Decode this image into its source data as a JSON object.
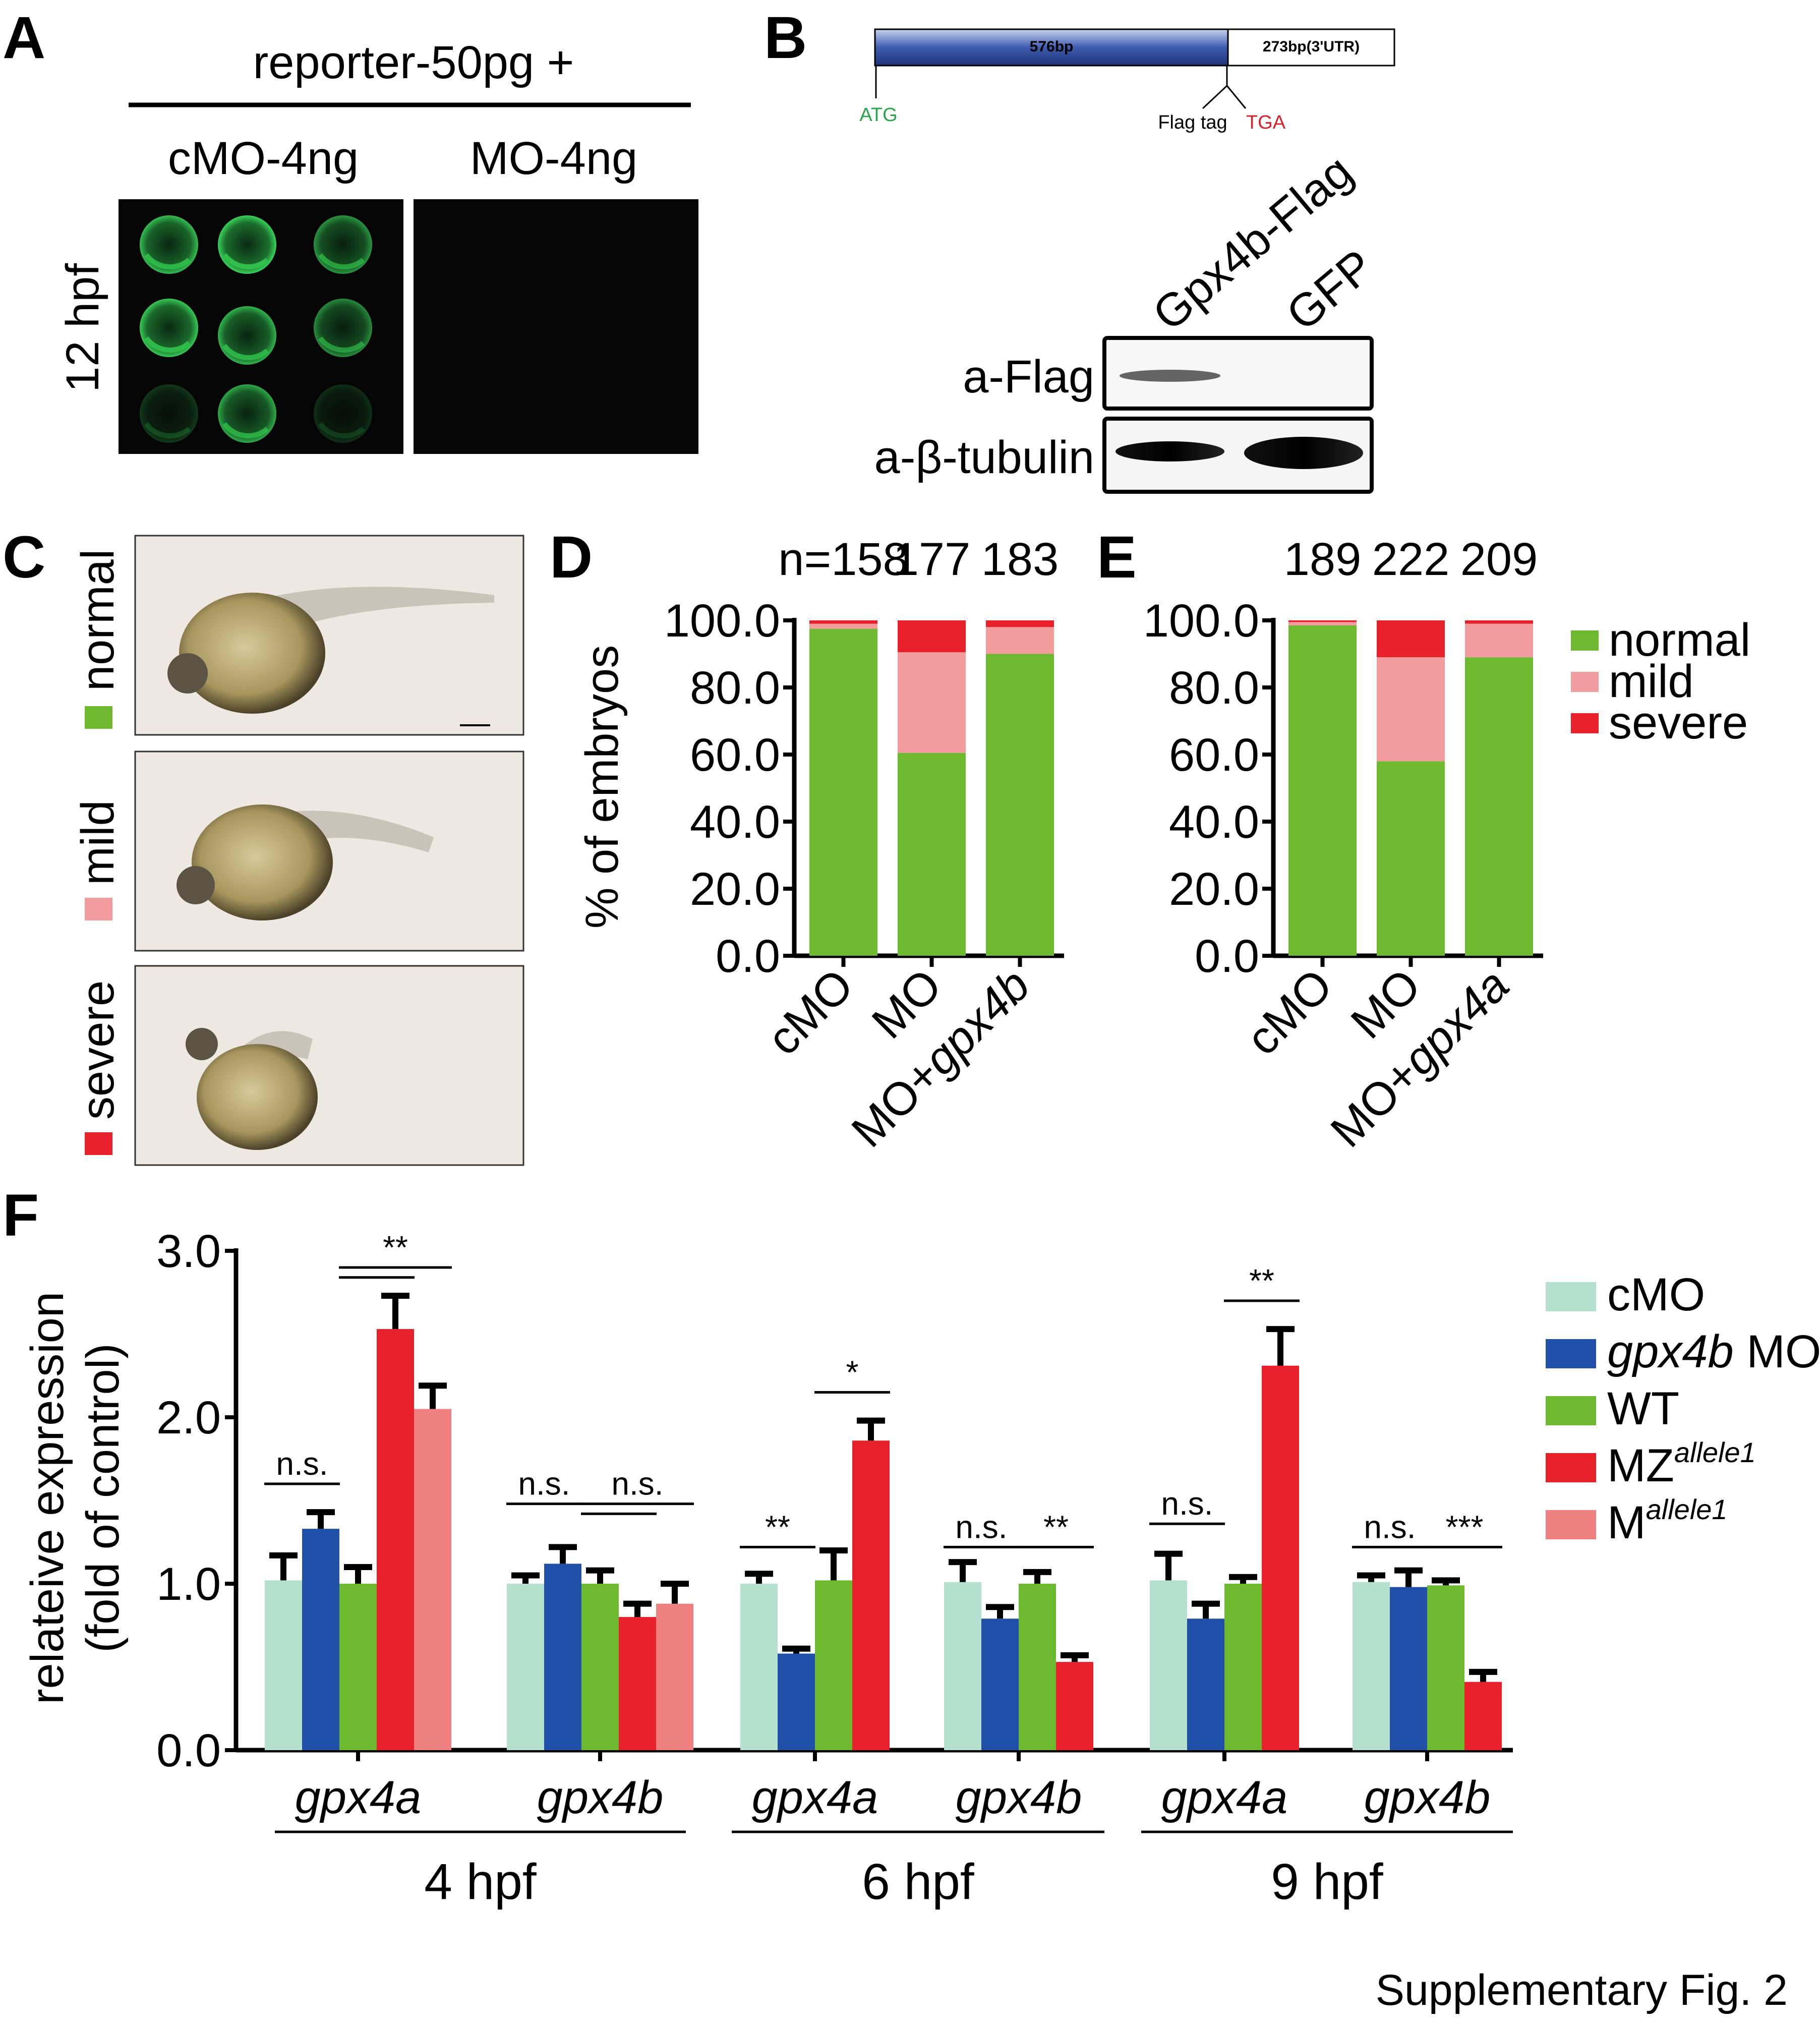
{
  "colors": {
    "normal": "#6db92f",
    "mild": "#f29c9d",
    "severe": "#e8202a",
    "cmo": "#b5e0d0",
    "gpx4b_mo": "#1f4fa6",
    "wt": "#6db92f",
    "mz": "#e8202a",
    "m": "#f08181",
    "gfp_glow": "#2fbf4a"
  },
  "icons": {
    "embryo": "embryo-icon"
  },
  "panelA": {
    "letter": "A",
    "header": "reporter-50pg +",
    "col1": "cMO-4ng",
    "col2": "MO-4ng",
    "ylabel": "12 hpf"
  },
  "panelB": {
    "letter": "B",
    "cds": "576bp",
    "utr": "273bp(3'UTR)",
    "atg": "ATG",
    "flag": "Flag tag",
    "tga": "TGA",
    "lane1": "Gpx4b-Flag",
    "lane2": "GFP",
    "row1": "a-Flag",
    "row2": "a-β-tubulin"
  },
  "panelC": {
    "letter": "C",
    "labels": [
      "normal",
      "mild",
      "severe"
    ]
  },
  "chart_data": [
    {
      "panel": "D",
      "type": "bar",
      "stacked": true,
      "categories": [
        "cMO",
        "MO",
        "MO+gpx4b"
      ],
      "category_parts": [
        [
          {
            "t": "cMO",
            "i": false
          }
        ],
        [
          {
            "t": "MO",
            "i": false
          }
        ],
        [
          {
            "t": "MO+",
            "i": false
          },
          {
            "t": "gpx4b",
            "i": true
          }
        ]
      ],
      "counts": [
        "n=158",
        "177",
        "183"
      ],
      "series": [
        {
          "name": "normal",
          "values": [
            97.5,
            60.5,
            90.0
          ]
        },
        {
          "name": "mild",
          "values": [
            1.5,
            30.0,
            8.0
          ]
        },
        {
          "name": "severe",
          "values": [
            1.0,
            9.5,
            2.0
          ]
        }
      ],
      "ylabel": "% of embryos",
      "ylim": [
        0,
        100
      ],
      "yticks": [
        "0.0",
        "20.0",
        "40.0",
        "60.0",
        "80.0",
        "100.0"
      ]
    },
    {
      "panel": "E",
      "type": "bar",
      "stacked": true,
      "categories": [
        "cMO",
        "MO",
        "MO+gpx4a"
      ],
      "category_parts": [
        [
          {
            "t": "cMO",
            "i": false
          }
        ],
        [
          {
            "t": "MO",
            "i": false
          }
        ],
        [
          {
            "t": "MO+",
            "i": false
          },
          {
            "t": "gpx4a",
            "i": true
          }
        ]
      ],
      "counts": [
        "189",
        "222",
        "209"
      ],
      "series": [
        {
          "name": "normal",
          "values": [
            98.5,
            58.0,
            89.0
          ]
        },
        {
          "name": "mild",
          "values": [
            1.0,
            31.0,
            10.0
          ]
        },
        {
          "name": "severe",
          "values": [
            0.5,
            11.0,
            1.0
          ]
        }
      ],
      "ylim": [
        0,
        100
      ],
      "yticks": [
        "0.0",
        "20.0",
        "40.0",
        "60.0",
        "80.0",
        "100.0"
      ],
      "legend": [
        "normal",
        "mild",
        "severe"
      ],
      "legend_position": "right"
    },
    {
      "panel": "F",
      "type": "bar",
      "ylabel_line1": "relateive expression",
      "ylabel_line2": "(fold of control)",
      "ylim": [
        0,
        3
      ],
      "yticks": [
        "0.0",
        "1.0",
        "2.0",
        "3.0"
      ],
      "groups": [
        {
          "gene": "gpx4a",
          "stage": "4 hpf",
          "values": [
            1.02,
            1.33,
            1.0,
            2.53,
            2.05
          ],
          "errors": [
            0.15,
            0.1,
            0.1,
            0.2,
            0.14
          ],
          "sig": [
            {
              "label": "n.s.",
              "from": 0,
              "to": 1,
              "y": 1.6
            },
            {
              "label": "**",
              "from": 2,
              "to": 4,
              "y": 2.9
            },
            {
              "label": "",
              "from": 2,
              "to": 3,
              "y": 2.84
            }
          ]
        },
        {
          "gene": "gpx4b",
          "stage": "4 hpf",
          "values": [
            1.0,
            1.12,
            1.0,
            0.8,
            0.88
          ],
          "errors": [
            0.05,
            0.1,
            0.08,
            0.08,
            0.12
          ],
          "sig": [
            {
              "label": "n.s.",
              "from": 0,
              "to": 1,
              "y": 1.48
            },
            {
              "label": "n.s.",
              "from": 2,
              "to": 4,
              "y": 1.48
            },
            {
              "label": "",
              "from": 2,
              "to": 3,
              "y": 1.42
            }
          ]
        },
        {
          "gene": "gpx4a",
          "stage": "6 hpf",
          "values": [
            1.0,
            0.58,
            1.02,
            1.86
          ],
          "errors": [
            0.06,
            0.03,
            0.18,
            0.12
          ],
          "sig": [
            {
              "label": "**",
              "from": 0,
              "to": 1,
              "y": 1.22
            },
            {
              "label": "*",
              "from": 2,
              "to": 3,
              "y": 2.15
            }
          ]
        },
        {
          "gene": "gpx4b",
          "stage": "6 hpf",
          "values": [
            1.01,
            0.79,
            1.0,
            0.53
          ],
          "errors": [
            0.12,
            0.07,
            0.07,
            0.04
          ],
          "sig": [
            {
              "label": "n.s.",
              "from": 0,
              "to": 1,
              "y": 1.22
            },
            {
              "label": "**",
              "from": 2,
              "to": 3,
              "y": 1.22
            }
          ]
        },
        {
          "gene": "gpx4a",
          "stage": "9 hpf",
          "values": [
            1.02,
            0.79,
            1.0,
            2.31
          ],
          "errors": [
            0.16,
            0.09,
            0.04,
            0.22
          ],
          "sig": [
            {
              "label": "n.s.",
              "from": 0,
              "to": 1,
              "y": 1.36
            },
            {
              "label": "**",
              "from": 2,
              "to": 3,
              "y": 2.7
            }
          ]
        },
        {
          "gene": "gpx4b",
          "stage": "9 hpf",
          "values": [
            1.01,
            0.98,
            0.99,
            0.41
          ],
          "errors": [
            0.04,
            0.1,
            0.03,
            0.06
          ],
          "sig": [
            {
              "label": "n.s.",
              "from": 0,
              "to": 1,
              "y": 1.22
            },
            {
              "label": "***",
              "from": 2,
              "to": 3,
              "y": 1.22
            }
          ]
        }
      ],
      "stages": [
        "4 hpf",
        "6 hpf",
        "9 hpf"
      ],
      "legend": [
        {
          "parts": [
            {
              "t": "cMO",
              "i": false
            }
          ]
        },
        {
          "parts": [
            {
              "t": "gpx4b",
              "i": true
            },
            {
              "t": " MO",
              "i": false
            }
          ]
        },
        {
          "parts": [
            {
              "t": "WT",
              "i": false
            }
          ]
        },
        {
          "parts": [
            {
              "t": "MZ",
              "i": false
            }
          ],
          "sup": "allele1"
        },
        {
          "parts": [
            {
              "t": "M",
              "i": false
            }
          ],
          "sup": "allele1"
        }
      ]
    }
  ],
  "panel_letters": {
    "D": "D",
    "E": "E",
    "F": "F"
  },
  "footer": "Supplementary Fig. 2"
}
